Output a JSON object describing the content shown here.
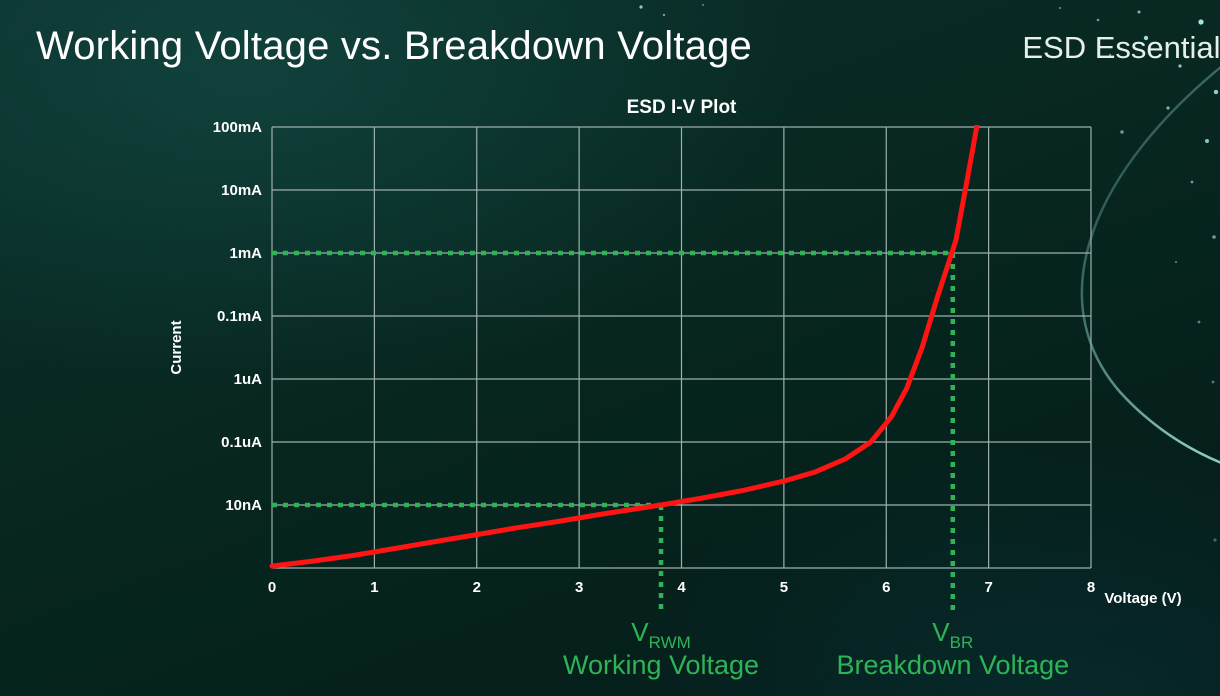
{
  "page": {
    "title": "Working Voltage vs. Breakdown Voltage",
    "brand": "ESD Essentials"
  },
  "chart_data": {
    "type": "line",
    "title": "ESD I-V Plot",
    "xlabel": "Voltage (V)",
    "ylabel": "Current",
    "x_axis": {
      "min": 0,
      "max": 8,
      "ticks": [
        0,
        1,
        2,
        3,
        4,
        5,
        6,
        7,
        8
      ]
    },
    "y_axis": {
      "scale": "log-decades",
      "rows": 7,
      "tick_labels_top_to_bottom": [
        "100mA",
        "10mA",
        "1mA",
        "0.1mA",
        "1uA",
        "0.1uA",
        "10nA"
      ]
    },
    "grid": true,
    "legend": false,
    "colors": {
      "grid": "#9db0ad",
      "axis_text": "#ffffff",
      "curve": "#ff1414",
      "annotation": "#2eb357"
    },
    "series": [
      {
        "name": "ESD I-V curve",
        "color": "#ff1414",
        "points": [
          [
            0,
            0.03
          ],
          [
            0.4,
            0.11
          ],
          [
            0.8,
            0.2
          ],
          [
            1.2,
            0.31
          ],
          [
            1.6,
            0.42
          ],
          [
            2,
            0.53
          ],
          [
            2.4,
            0.64
          ],
          [
            2.8,
            0.74
          ],
          [
            3.2,
            0.85
          ],
          [
            3.6,
            0.95
          ],
          [
            3.8,
            1
          ],
          [
            4.2,
            1.11
          ],
          [
            4.6,
            1.23
          ],
          [
            5,
            1.38
          ],
          [
            5.3,
            1.52
          ],
          [
            5.6,
            1.73
          ],
          [
            5.85,
            2
          ],
          [
            6.05,
            2.4
          ],
          [
            6.2,
            2.85
          ],
          [
            6.35,
            3.5
          ],
          [
            6.5,
            4.3
          ],
          [
            6.6,
            4.8
          ],
          [
            6.68,
            5.2
          ],
          [
            6.76,
            5.9
          ],
          [
            6.84,
            6.6
          ],
          [
            6.9,
            7.15
          ]
        ]
      }
    ],
    "annotations": [
      {
        "id": "vrwm",
        "x": 3.8,
        "y_row": 1,
        "at_current": "10nA",
        "symbol": "V",
        "subscript": "RWM",
        "caption": "Working Voltage"
      },
      {
        "id": "vbr",
        "x": 6.65,
        "y_row": 5,
        "at_current": "1mA",
        "symbol": "V",
        "subscript": "BR",
        "caption": "Breakdown Voltage"
      }
    ]
  }
}
